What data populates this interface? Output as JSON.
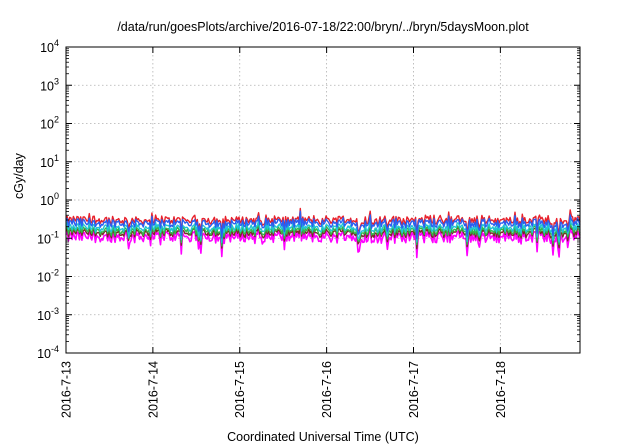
{
  "chart_data": {
    "type": "line",
    "title": "/data/run/goesPlots/archive/2016-07-18/22:00/bryn/../bryn/5daysMoon.plot",
    "xlabel": "Coordinated Universal Time (UTC)",
    "ylabel": "cGy/day",
    "yscale": "log",
    "ylim": [
      0.0001,
      10000
    ],
    "xlim": [
      "2016-07-13",
      "2016-07-18T22:00"
    ],
    "x_tick_labels": [
      "2016-7-13",
      "2016-7-14",
      "2016-7-15",
      "2016-7-16",
      "2016-7-17",
      "2016-7-18"
    ],
    "y_tick_labels": [
      {
        "base": "10",
        "exp": "-4"
      },
      {
        "base": "10",
        "exp": "-3"
      },
      {
        "base": "10",
        "exp": "-2"
      },
      {
        "base": "10",
        "exp": "-1"
      },
      {
        "base": "10",
        "exp": "0"
      },
      {
        "base": "10",
        "exp": "1"
      },
      {
        "base": "10",
        "exp": "2"
      },
      {
        "base": "10",
        "exp": "3"
      },
      {
        "base": "10",
        "exp": "4"
      }
    ],
    "grid": true,
    "series": [
      {
        "color": "#e8202a",
        "approx_level": 0.3
      },
      {
        "color": "#2a5ef0",
        "approx_level": 0.25
      },
      {
        "color": "#21c4d4",
        "approx_level": 0.19
      },
      {
        "color": "#2fb84a",
        "approx_level": 0.16
      },
      {
        "color": "#7a2a2a",
        "approx_level": 0.14
      },
      {
        "color": "#ff00ff",
        "approx_level": 0.11
      }
    ]
  }
}
